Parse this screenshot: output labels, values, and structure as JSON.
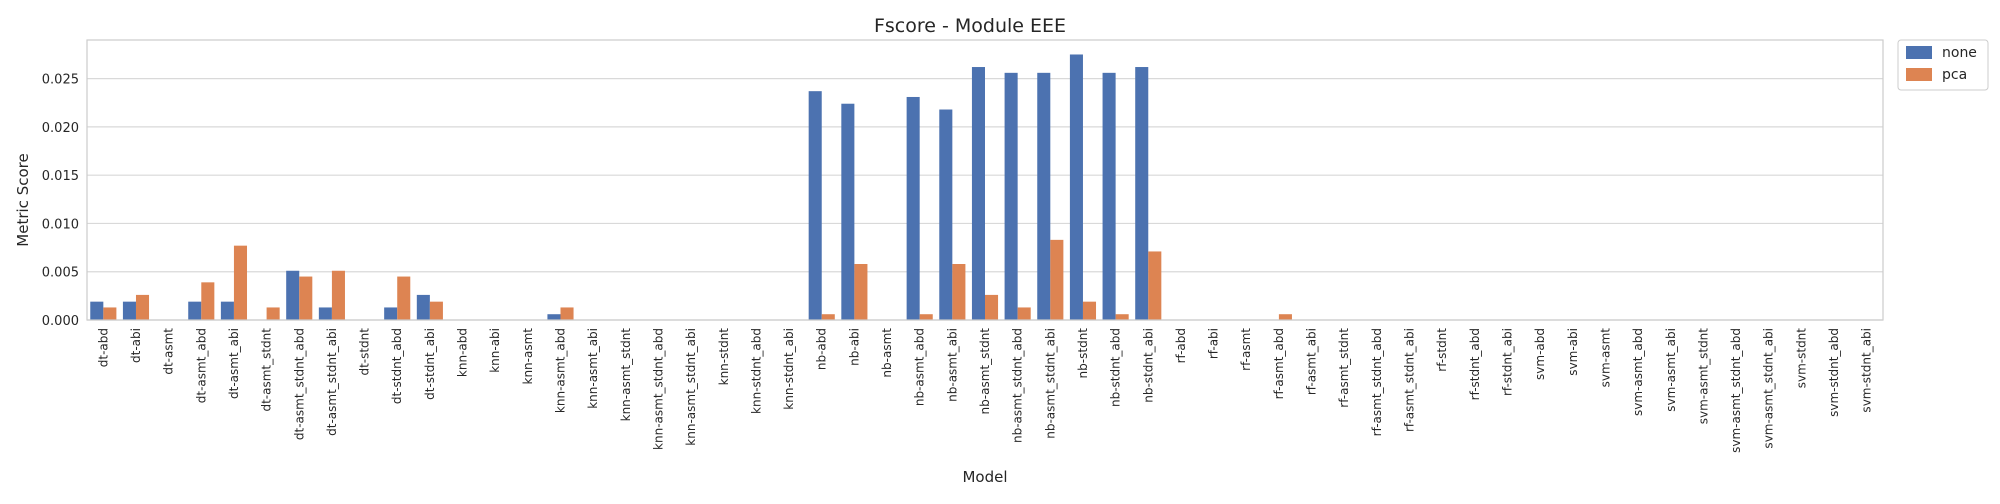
{
  "chart_data": {
    "type": "bar",
    "title": "Fscore - Module EEE",
    "xlabel": "Model",
    "ylabel": "Metric Score",
    "ylim": [
      0,
      0.029
    ],
    "yticks": [
      0.0,
      0.005,
      0.01,
      0.015,
      0.02,
      0.025
    ],
    "ytick_labels": [
      "0.000",
      "0.005",
      "0.010",
      "0.015",
      "0.020",
      "0.025"
    ],
    "grid": true,
    "legend_position": "outside top-right",
    "categories": [
      "dt-abd",
      "dt-abi",
      "dt-asmt",
      "dt-asmt_abd",
      "dt-asmt_abi",
      "dt-asmt_stdnt",
      "dt-asmt_stdnt_abd",
      "dt-asmt_stdnt_abi",
      "dt-stdnt",
      "dt-stdnt_abd",
      "dt-stdnt_abi",
      "knn-abd",
      "knn-abi",
      "knn-asmt",
      "knn-asmt_abd",
      "knn-asmt_abi",
      "knn-asmt_stdnt",
      "knn-asmt_stdnt_abd",
      "knn-asmt_stdnt_abi",
      "knn-stdnt",
      "knn-stdnt_abd",
      "knn-stdnt_abi",
      "nb-abd",
      "nb-abi",
      "nb-asmt",
      "nb-asmt_abd",
      "nb-asmt_abi",
      "nb-asmt_stdnt",
      "nb-asmt_stdnt_abd",
      "nb-asmt_stdnt_abi",
      "nb-stdnt",
      "nb-stdnt_abd",
      "nb-stdnt_abi",
      "rf-abd",
      "rf-abi",
      "rf-asmt",
      "rf-asmt_abd",
      "rf-asmt_abi",
      "rf-asmt_stdnt",
      "rf-asmt_stdnt_abd",
      "rf-asmt_stdnt_abi",
      "rf-stdnt",
      "rf-stdnt_abd",
      "rf-stdnt_abi",
      "svm-abd",
      "svm-abi",
      "svm-asmt",
      "svm-asmt_abd",
      "svm-asmt_abi",
      "svm-asmt_stdnt",
      "svm-asmt_stdnt_abd",
      "svm-asmt_stdnt_abi",
      "svm-stdnt",
      "svm-stdnt_abd",
      "svm-stdnt_abi"
    ],
    "series": [
      {
        "name": "none",
        "color": "#4c72b0",
        "values": [
          0.0019,
          0.0019,
          0,
          0.0019,
          0.0019,
          0,
          0.0051,
          0.0013,
          0,
          0.0013,
          0.0026,
          0,
          0,
          0,
          0.0006,
          0,
          0,
          0,
          0,
          0,
          0,
          0,
          0.0237,
          0.0224,
          0,
          0.0231,
          0.0218,
          0.0262,
          0.0256,
          0.0256,
          0.0275,
          0.0256,
          0.0262,
          0,
          0,
          0,
          0,
          0,
          0,
          0,
          0,
          0,
          0,
          0,
          0,
          0,
          0,
          0,
          0,
          0,
          0,
          0,
          0,
          0,
          0
        ]
      },
      {
        "name": "pca",
        "color": "#dd8452",
        "values": [
          0.0013,
          0.0026,
          0,
          0.0039,
          0.0077,
          0.0013,
          0.0045,
          0.0051,
          0,
          0.0045,
          0.0019,
          0,
          0,
          0,
          0.0013,
          0,
          0,
          0,
          0,
          0,
          0,
          0,
          0.0006,
          0.0058,
          0,
          0.0006,
          0.0058,
          0.0026,
          0.0013,
          0.0083,
          0.0019,
          0.0006,
          0.0071,
          0,
          0,
          0,
          0.0006,
          0,
          0,
          0,
          0,
          0,
          0,
          0,
          0,
          0,
          0,
          0,
          0,
          0,
          0,
          0,
          0,
          0,
          0
        ]
      }
    ]
  }
}
